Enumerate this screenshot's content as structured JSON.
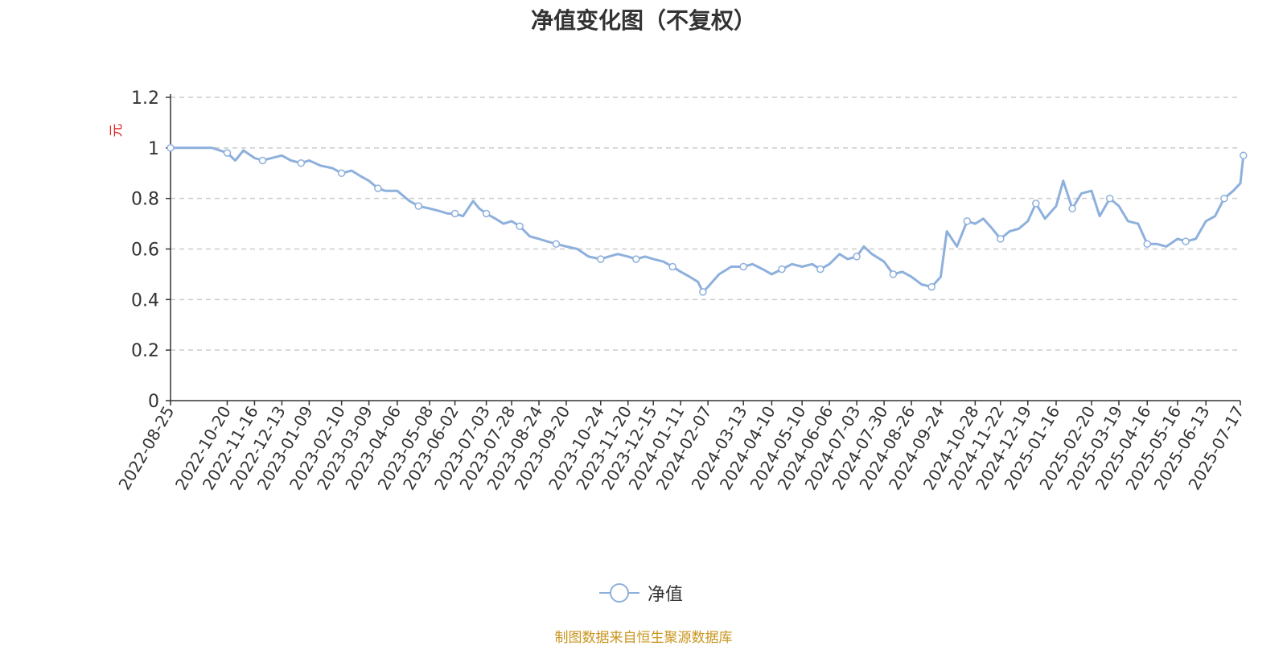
{
  "chart_data": {
    "type": "line",
    "title": "净值变化图（不复权）",
    "ylabel": "元",
    "ylim": [
      0,
      1.2
    ],
    "yticks": [
      0,
      0.2,
      0.4,
      0.6,
      0.8,
      1,
      1.2
    ],
    "grid": true,
    "legend_position": "bottom-center",
    "colors": {
      "line": "#8eb0dc",
      "grid": "#cccccc",
      "ylabel": "#e02020",
      "source": "#c8951e"
    },
    "x_tick_labels": [
      "2022-08-25",
      "2022-10-20",
      "2022-11-16",
      "2022-12-13",
      "2023-01-09",
      "2023-02-10",
      "2023-03-09",
      "2023-04-06",
      "2023-05-08",
      "2023-06-02",
      "2023-07-03",
      "2023-07-28",
      "2023-08-24",
      "2023-09-20",
      "2023-10-24",
      "2023-11-20",
      "2023-12-15",
      "2024-01-11",
      "2024-02-07",
      "2024-03-13",
      "2024-04-10",
      "2024-05-10",
      "2024-06-06",
      "2024-07-03",
      "2024-07-30",
      "2024-08-26",
      "2024-09-24",
      "2024-10-28",
      "2024-11-22",
      "2024-12-19",
      "2025-01-16",
      "2025-02-20",
      "2025-03-19",
      "2025-04-16",
      "2025-05-16",
      "2025-06-13",
      "2025-07-17"
    ],
    "series": [
      {
        "name": "净值",
        "x": [
          "2022-08-25",
          "2022-09-10",
          "2022-09-25",
          "2022-10-05",
          "2022-10-20",
          "2022-10-28",
          "2022-11-05",
          "2022-11-16",
          "2022-11-24",
          "2022-12-03",
          "2022-12-13",
          "2022-12-22",
          "2023-01-01",
          "2023-01-09",
          "2023-01-20",
          "2023-02-01",
          "2023-02-10",
          "2023-02-20",
          "2023-02-28",
          "2023-03-09",
          "2023-03-18",
          "2023-03-25",
          "2023-04-06",
          "2023-04-18",
          "2023-04-27",
          "2023-05-08",
          "2023-05-18",
          "2023-05-26",
          "2023-06-02",
          "2023-06-10",
          "2023-06-20",
          "2023-06-26",
          "2023-07-03",
          "2023-07-12",
          "2023-07-20",
          "2023-07-28",
          "2023-08-05",
          "2023-08-15",
          "2023-08-24",
          "2023-09-01",
          "2023-09-10",
          "2023-09-20",
          "2023-10-01",
          "2023-10-12",
          "2023-10-24",
          "2023-11-01",
          "2023-11-10",
          "2023-11-20",
          "2023-11-28",
          "2023-12-07",
          "2023-12-15",
          "2023-12-25",
          "2024-01-03",
          "2024-01-11",
          "2024-01-20",
          "2024-01-28",
          "2024-02-02",
          "2024-02-07",
          "2024-02-18",
          "2024-03-01",
          "2024-03-13",
          "2024-03-22",
          "2024-04-01",
          "2024-04-10",
          "2024-04-20",
          "2024-04-30",
          "2024-05-10",
          "2024-05-20",
          "2024-05-28",
          "2024-06-06",
          "2024-06-16",
          "2024-06-24",
          "2024-07-03",
          "2024-07-10",
          "2024-07-18",
          "2024-07-30",
          "2024-08-08",
          "2024-08-17",
          "2024-08-26",
          "2024-09-05",
          "2024-09-15",
          "2024-09-24",
          "2024-09-30",
          "2024-10-10",
          "2024-10-20",
          "2024-10-28",
          "2024-11-05",
          "2024-11-14",
          "2024-11-22",
          "2024-12-01",
          "2024-12-10",
          "2024-12-19",
          "2024-12-27",
          "2025-01-05",
          "2025-01-16",
          "2025-01-23",
          "2025-02-01",
          "2025-02-10",
          "2025-02-20",
          "2025-02-28",
          "2025-03-10",
          "2025-03-19",
          "2025-03-28",
          "2025-04-07",
          "2025-04-16",
          "2025-04-25",
          "2025-05-05",
          "2025-05-16",
          "2025-05-24",
          "2025-06-03",
          "2025-06-13",
          "2025-06-22",
          "2025-07-01",
          "2025-07-10",
          "2025-07-17",
          "2025-07-20"
        ],
        "values": [
          1.0,
          1.0,
          1.0,
          1.0,
          0.98,
          0.95,
          0.99,
          0.96,
          0.95,
          0.96,
          0.97,
          0.95,
          0.94,
          0.95,
          0.93,
          0.92,
          0.9,
          0.91,
          0.89,
          0.87,
          0.84,
          0.83,
          0.83,
          0.79,
          0.77,
          0.76,
          0.75,
          0.74,
          0.74,
          0.73,
          0.79,
          0.76,
          0.74,
          0.72,
          0.7,
          0.71,
          0.69,
          0.65,
          0.64,
          0.63,
          0.62,
          0.61,
          0.6,
          0.57,
          0.56,
          0.57,
          0.58,
          0.57,
          0.56,
          0.57,
          0.56,
          0.55,
          0.53,
          0.51,
          0.49,
          0.47,
          0.43,
          0.45,
          0.5,
          0.53,
          0.53,
          0.54,
          0.52,
          0.5,
          0.52,
          0.54,
          0.53,
          0.54,
          0.52,
          0.54,
          0.58,
          0.56,
          0.57,
          0.61,
          0.58,
          0.55,
          0.5,
          0.51,
          0.49,
          0.46,
          0.45,
          0.49,
          0.67,
          0.61,
          0.71,
          0.7,
          0.72,
          0.68,
          0.64,
          0.67,
          0.68,
          0.71,
          0.78,
          0.72,
          0.77,
          0.87,
          0.76,
          0.82,
          0.83,
          0.73,
          0.8,
          0.77,
          0.71,
          0.7,
          0.62,
          0.62,
          0.61,
          0.64,
          0.63,
          0.64,
          0.71,
          0.73,
          0.8,
          0.83,
          0.86,
          0.97
        ]
      }
    ]
  },
  "legend": {
    "label": "净值"
  },
  "source_note": "制图数据来自恒生聚源数据库"
}
